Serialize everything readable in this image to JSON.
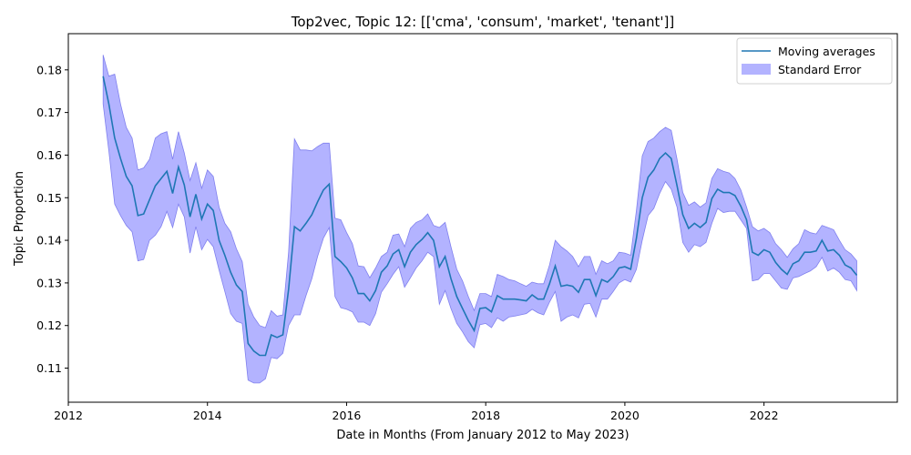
{
  "chart_data": {
    "type": "line",
    "title": "Top2vec, Topic 12: [['cma', 'consum', 'market', 'tenant']]",
    "xlabel": "Date in Months (From January 2012 to May 2023)",
    "ylabel": "Topic Proportion",
    "xlim": [
      "2012-01",
      "2023-12"
    ],
    "ylim": [
      0.102,
      0.1885
    ],
    "x_ticks": [
      "2012",
      "2014",
      "2016",
      "2018",
      "2020",
      "2022"
    ],
    "y_ticks": [
      "0.11",
      "0.12",
      "0.13",
      "0.14",
      "0.15",
      "0.16",
      "0.17",
      "0.18"
    ],
    "grid": false,
    "legend": {
      "placement": "top-right",
      "entries": [
        "Moving averages",
        "Standard Error"
      ]
    },
    "colors": {
      "line": "#1f77b4",
      "band": "#b3b3ff",
      "band_edge": "#8080ee"
    },
    "series": [
      {
        "name": "Moving averages",
        "x": [
          "2012-07",
          "2012-08",
          "2012-09",
          "2012-10",
          "2012-11",
          "2012-12",
          "2013-01",
          "2013-02",
          "2013-03",
          "2013-04",
          "2013-05",
          "2013-06",
          "2013-07",
          "2013-08",
          "2013-09",
          "2013-10",
          "2013-11",
          "2013-12",
          "2014-01",
          "2014-02",
          "2014-03",
          "2014-04",
          "2014-05",
          "2014-06",
          "2014-07",
          "2014-08",
          "2014-09",
          "2014-10",
          "2014-11",
          "2014-12",
          "2015-01",
          "2015-02",
          "2015-03",
          "2015-04",
          "2015-05",
          "2015-06",
          "2015-07",
          "2015-08",
          "2015-09",
          "2015-10",
          "2015-11",
          "2015-12",
          "2016-01",
          "2016-02",
          "2016-03",
          "2016-04",
          "2016-05",
          "2016-06",
          "2016-07",
          "2016-08",
          "2016-09",
          "2016-10",
          "2016-11",
          "2016-12",
          "2017-01",
          "2017-02",
          "2017-03",
          "2017-04",
          "2017-05",
          "2017-06",
          "2017-07",
          "2017-08",
          "2017-09",
          "2017-10",
          "2017-11",
          "2017-12",
          "2018-01",
          "2018-02",
          "2018-03",
          "2018-04",
          "2018-05",
          "2018-06",
          "2018-07",
          "2018-08",
          "2018-09",
          "2018-10",
          "2018-11",
          "2018-12",
          "2019-01",
          "2019-02",
          "2019-03",
          "2019-04",
          "2019-05",
          "2019-06",
          "2019-07",
          "2019-08",
          "2019-09",
          "2019-10",
          "2019-11",
          "2019-12",
          "2020-01",
          "2020-02",
          "2020-03",
          "2020-04",
          "2020-05",
          "2020-06",
          "2020-07",
          "2020-08",
          "2020-09",
          "2020-10",
          "2020-11",
          "2020-12",
          "2021-01",
          "2021-02",
          "2021-03",
          "2021-04",
          "2021-05",
          "2021-06",
          "2021-07",
          "2021-08",
          "2021-09",
          "2021-10",
          "2021-11",
          "2021-12",
          "2022-01",
          "2022-02",
          "2022-03",
          "2022-04",
          "2022-05",
          "2022-06",
          "2022-07",
          "2022-08",
          "2022-09",
          "2022-10",
          "2022-11",
          "2022-12",
          "2023-01",
          "2023-02",
          "2023-03",
          "2023-04",
          "2023-05"
        ],
        "y": [
          0.1785,
          0.172,
          0.164,
          0.1592,
          0.155,
          0.1528,
          0.1458,
          0.1462,
          0.1495,
          0.1528,
          0.1545,
          0.1562,
          0.151,
          0.1572,
          0.153,
          0.1455,
          0.1508,
          0.145,
          0.1485,
          0.147,
          0.14,
          0.1365,
          0.1325,
          0.1295,
          0.128,
          0.1158,
          0.114,
          0.113,
          0.113,
          0.1178,
          0.1172,
          0.1178,
          0.1285,
          0.1432,
          0.1422,
          0.144,
          0.146,
          0.149,
          0.1518,
          0.1532,
          0.1362,
          0.135,
          0.1335,
          0.1312,
          0.1275,
          0.1275,
          0.1258,
          0.1282,
          0.1325,
          0.134,
          0.1368,
          0.1378,
          0.1338,
          0.1372,
          0.139,
          0.1402,
          0.1418,
          0.14,
          0.1338,
          0.1362,
          0.131,
          0.1268,
          0.124,
          0.1212,
          0.1188,
          0.124,
          0.1242,
          0.1232,
          0.127,
          0.1262,
          0.1262,
          0.1262,
          0.126,
          0.1258,
          0.1272,
          0.1262,
          0.1262,
          0.1298,
          0.134,
          0.1292,
          0.1295,
          0.1292,
          0.1278,
          0.1308,
          0.1308,
          0.127,
          0.1308,
          0.1302,
          0.1315,
          0.1335,
          0.1338,
          0.1332,
          0.1405,
          0.15,
          0.1548,
          0.1565,
          0.1592,
          0.1605,
          0.1592,
          0.1528,
          0.146,
          0.1428,
          0.144,
          0.143,
          0.1442,
          0.1498,
          0.152,
          0.1512,
          0.1512,
          0.1505,
          0.148,
          0.1448,
          0.1372,
          0.1365,
          0.1378,
          0.1372,
          0.1348,
          0.1332,
          0.132,
          0.1345,
          0.1352,
          0.1372,
          0.1372,
          0.1375,
          0.14,
          0.1375,
          0.1378,
          0.1365,
          0.1342,
          0.1335,
          0.1318
        ],
        "lower": [
          0.172,
          0.161,
          0.1485,
          0.1458,
          0.1435,
          0.142,
          0.1352,
          0.1355,
          0.14,
          0.1412,
          0.1432,
          0.1468,
          0.143,
          0.1485,
          0.1455,
          0.137,
          0.1432,
          0.1378,
          0.1402,
          0.1385,
          0.133,
          0.128,
          0.1228,
          0.121,
          0.1205,
          0.1072,
          0.1065,
          0.1065,
          0.1075,
          0.1125,
          0.1122,
          0.1135,
          0.12,
          0.1225,
          0.1225,
          0.127,
          0.131,
          0.1362,
          0.1405,
          0.143,
          0.1268,
          0.1242,
          0.1238,
          0.1232,
          0.1208,
          0.1208,
          0.12,
          0.1228,
          0.1278,
          0.1298,
          0.132,
          0.1338,
          0.129,
          0.1312,
          0.1335,
          0.1352,
          0.1372,
          0.1362,
          0.125,
          0.1282,
          0.124,
          0.1205,
          0.1185,
          0.1162,
          0.1148,
          0.1202,
          0.1205,
          0.1195,
          0.1218,
          0.121,
          0.122,
          0.1222,
          0.1225,
          0.1228,
          0.1238,
          0.123,
          0.1225,
          0.1255,
          0.128,
          0.121,
          0.122,
          0.1225,
          0.1218,
          0.125,
          0.1252,
          0.122,
          0.1262,
          0.1262,
          0.128,
          0.13,
          0.1308,
          0.1302,
          0.1332,
          0.14,
          0.1458,
          0.1475,
          0.151,
          0.1538,
          0.152,
          0.1478,
          0.1395,
          0.1372,
          0.139,
          0.1385,
          0.1395,
          0.144,
          0.1475,
          0.1465,
          0.1468,
          0.1468,
          0.1448,
          0.1428,
          0.1305,
          0.1308,
          0.1322,
          0.1322,
          0.1305,
          0.1288,
          0.1285,
          0.1312,
          0.1315,
          0.1322,
          0.1328,
          0.1338,
          0.136,
          0.1328,
          0.1335,
          0.1325,
          0.1308,
          0.1305,
          0.1282
        ],
        "upper": [
          0.1835,
          0.1785,
          0.179,
          0.172,
          0.1665,
          0.164,
          0.1565,
          0.157,
          0.159,
          0.164,
          0.165,
          0.1655,
          0.159,
          0.1655,
          0.1605,
          0.154,
          0.1582,
          0.1522,
          0.1565,
          0.155,
          0.1478,
          0.144,
          0.142,
          0.138,
          0.135,
          0.125,
          0.122,
          0.12,
          0.1195,
          0.1235,
          0.1222,
          0.1225,
          0.1372,
          0.1638,
          0.1612,
          0.1612,
          0.161,
          0.162,
          0.1628,
          0.1628,
          0.1452,
          0.1448,
          0.1418,
          0.1392,
          0.134,
          0.1338,
          0.1312,
          0.1335,
          0.1362,
          0.1372,
          0.1412,
          0.1415,
          0.1385,
          0.1428,
          0.1442,
          0.1448,
          0.1462,
          0.1435,
          0.143,
          0.1442,
          0.1385,
          0.1332,
          0.1305,
          0.1268,
          0.1235,
          0.1275,
          0.1275,
          0.1268,
          0.132,
          0.1315,
          0.1308,
          0.1305,
          0.1298,
          0.1292,
          0.1302,
          0.1298,
          0.1298,
          0.1342,
          0.14,
          0.1385,
          0.1375,
          0.1362,
          0.1338,
          0.1362,
          0.1362,
          0.132,
          0.1352,
          0.1345,
          0.1352,
          0.1372,
          0.137,
          0.1365,
          0.147,
          0.1598,
          0.1632,
          0.164,
          0.1655,
          0.1665,
          0.1658,
          0.159,
          0.1512,
          0.1482,
          0.149,
          0.1478,
          0.1488,
          0.1545,
          0.1568,
          0.1562,
          0.1558,
          0.1545,
          0.1518,
          0.1478,
          0.1432,
          0.1422,
          0.1428,
          0.1418,
          0.1392,
          0.1378,
          0.136,
          0.138,
          0.1392,
          0.1425,
          0.1418,
          0.1415,
          0.1435,
          0.143,
          0.1425,
          0.14,
          0.1378,
          0.1368,
          0.1352
        ]
      }
    ]
  }
}
